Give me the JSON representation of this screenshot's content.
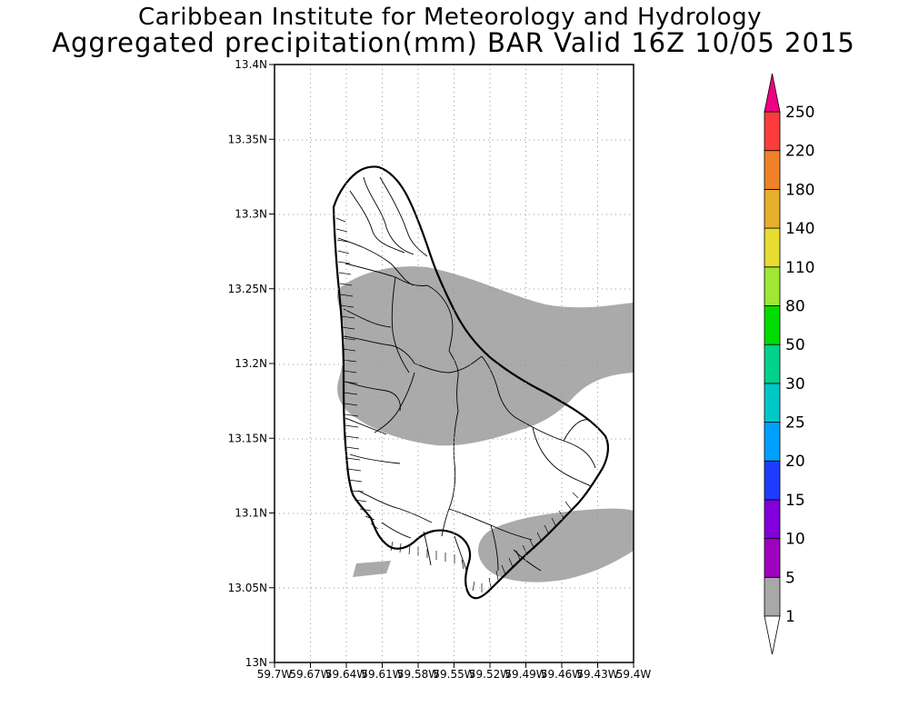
{
  "title_line1": "Caribbean Institute for Meteorology and Hydrology",
  "title_line2": "Aggregated precipitation(mm) BAR Valid 16Z 10/05 2015",
  "map": {
    "region": "Barbados",
    "grid": true,
    "lat_ticks": [
      "13N",
      "13.05N",
      "13.1N",
      "13.15N",
      "13.2N",
      "13.25N",
      "13.3N",
      "13.35N",
      "13.4N"
    ],
    "lon_ticks": [
      "59.7W",
      "59.67W",
      "59.64W",
      "59.61W",
      "59.58W",
      "59.55W",
      "59.52W",
      "59.49W",
      "59.46W",
      "59.43W",
      "59.4W"
    ],
    "lat_range": [
      13.0,
      13.4
    ],
    "lon_range": [
      -59.7,
      -59.4
    ],
    "precip_class_shown": "1-5 mm (gray shading)"
  },
  "colorbar": {
    "labels": [
      "1",
      "5",
      "10",
      "15",
      "20",
      "25",
      "30",
      "50",
      "80",
      "110",
      "140",
      "180",
      "220",
      "250"
    ],
    "colors": [
      "#a8a8a8",
      "#a000c0",
      "#8200dc",
      "#1e3cff",
      "#00a0ff",
      "#00c8c8",
      "#00d28c",
      "#00dc00",
      "#a0e632",
      "#e6dc32",
      "#e6af2d",
      "#f08228",
      "#fa3c3c",
      "#f00082"
    ],
    "low_color": "#ffffff",
    "high_color": "#f00082"
  }
}
